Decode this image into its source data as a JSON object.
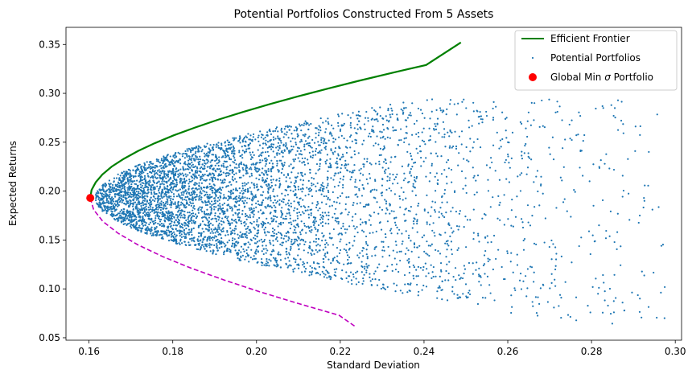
{
  "chart_data": {
    "type": "scatter",
    "title": "Potential Portfolios Constructed From 5 Assets",
    "xlabel": "Standard Deviation",
    "ylabel": "Expected Returns",
    "xlim": [
      0.1545,
      0.3015
    ],
    "ylim": [
      0.0475,
      0.3675
    ],
    "xticks": [
      "0.16",
      "0.18",
      "0.20",
      "0.22",
      "0.24",
      "0.26",
      "0.28",
      "0.30"
    ],
    "xtick_values": [
      0.16,
      0.18,
      0.2,
      0.22,
      0.24,
      0.26,
      0.28,
      0.3
    ],
    "yticks": [
      "0.05",
      "0.10",
      "0.15",
      "0.20",
      "0.25",
      "0.30",
      "0.35"
    ],
    "ytick_values": [
      0.05,
      0.1,
      0.15,
      0.2,
      0.25,
      0.3,
      0.35
    ],
    "grid": false,
    "legend_position": "top-right",
    "legend": {
      "frontier": "Efficient Frontier",
      "portfolios": "Potential Portfolios",
      "min_prefix": "Global Min ",
      "min_sigma": "σ",
      "min_suffix": " Portfolio"
    },
    "colors": {
      "frontier": "#008000",
      "inefficient": "#bf00bf",
      "portfolios": "#1f77b4",
      "min_point": "#ff0000"
    },
    "efficient_frontier": {
      "x": [
        0.1603,
        0.1606,
        0.1616,
        0.1632,
        0.1654,
        0.1683,
        0.1717,
        0.1757,
        0.1802,
        0.1853,
        0.1908,
        0.1968,
        0.2032,
        0.21,
        0.2172,
        0.2246,
        0.2324,
        0.2405,
        0.2488
      ],
      "y": [
        0.193,
        0.201,
        0.209,
        0.217,
        0.225,
        0.233,
        0.241,
        0.249,
        0.257,
        0.265,
        0.273,
        0.281,
        0.289,
        0.297,
        0.305,
        0.313,
        0.321,
        0.329,
        0.352
      ]
    },
    "inefficient_frontier": {
      "x": [
        0.1603,
        0.1611,
        0.1633,
        0.1669,
        0.1717,
        0.1776,
        0.1845,
        0.1923,
        0.2008,
        0.21,
        0.2197,
        0.2234
      ],
      "y": [
        0.193,
        0.181,
        0.169,
        0.157,
        0.145,
        0.133,
        0.121,
        0.109,
        0.097,
        0.085,
        0.073,
        0.062
      ]
    },
    "global_min": {
      "x": 0.1603,
      "y": 0.193
    },
    "portfolio_cloud": {
      "count": 5000,
      "seed": 12345,
      "var_min": 0.0257,
      "center_return": 0.193,
      "curvature": 3.0,
      "sd_excess_decay": 0.027,
      "sd_excess_max": 0.14,
      "return_spread": 0.11,
      "return_min": 0.062,
      "return_max": 0.294
    }
  }
}
